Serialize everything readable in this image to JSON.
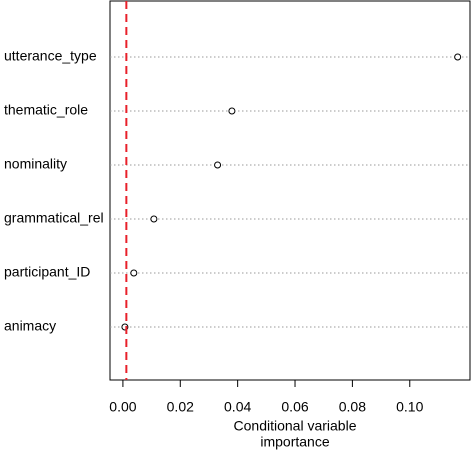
{
  "chart_data": {
    "type": "dotplot",
    "categories": [
      "utterance_type",
      "thematic_role",
      "nominality",
      "grammatical_rel",
      "participant_ID",
      "animacy"
    ],
    "values": [
      0.1167,
      0.038,
      0.033,
      0.0108,
      0.0038,
      0.0007
    ],
    "xlim": [
      -0.0045,
      0.121
    ],
    "xticks": [
      {
        "value": 0,
        "label": "0.00"
      },
      0.02,
      0.04,
      0.06,
      0.08,
      {
        "value": 0.1,
        "label": "0.10"
      }
    ],
    "xlabel": [
      "Conditional variable",
      "importance"
    ],
    "reference_line": {
      "value": 0.0012,
      "color": "#e8202a"
    },
    "marker_color": "#000000"
  }
}
